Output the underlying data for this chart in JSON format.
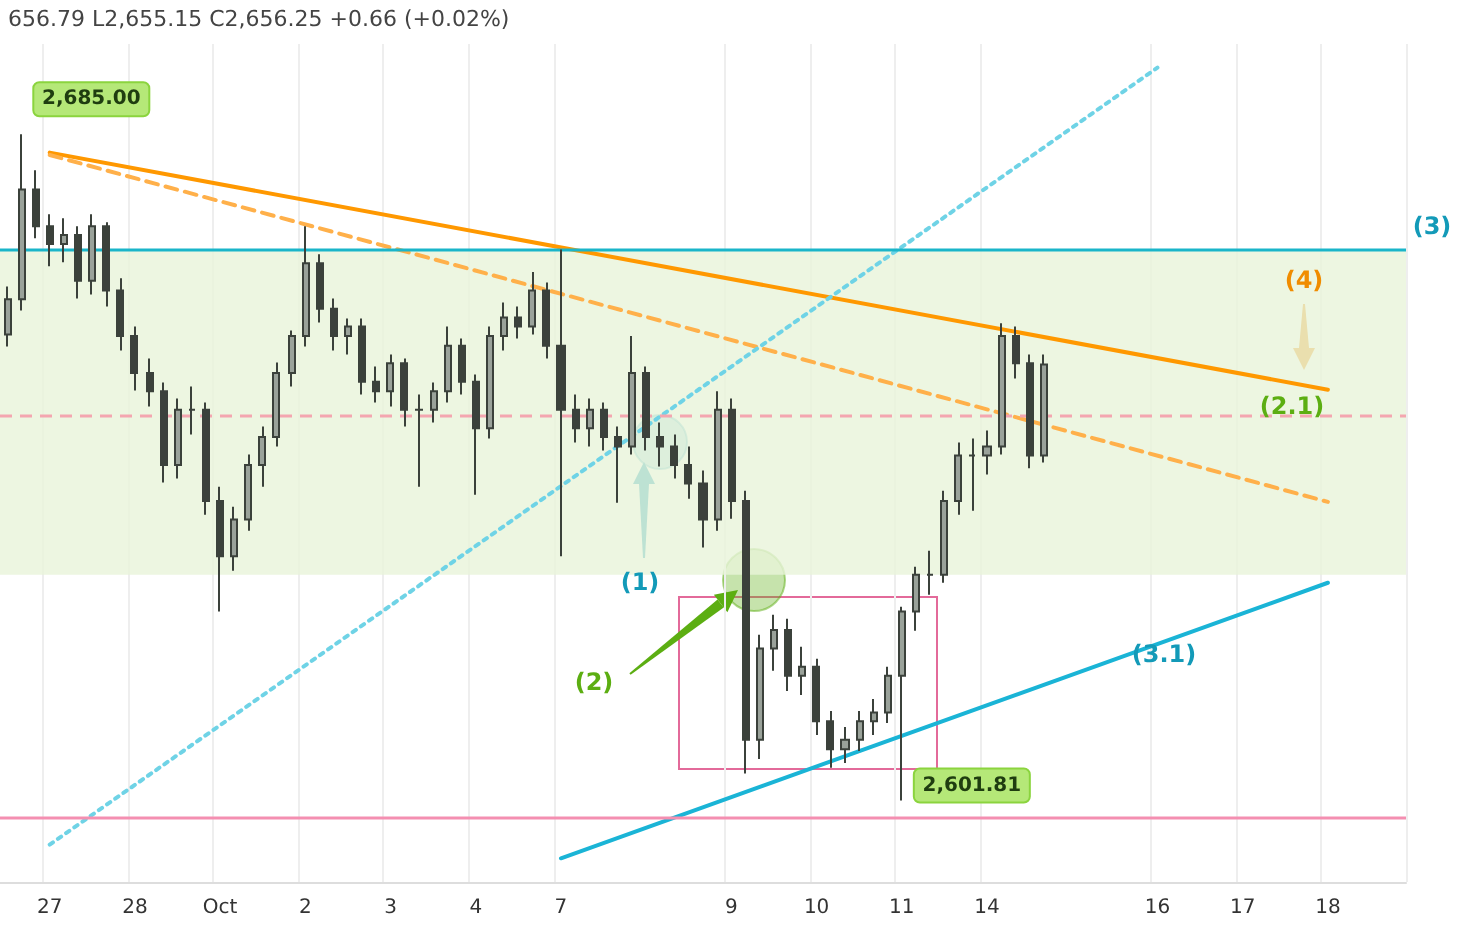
{
  "chart_data": {
    "type": "candlestick",
    "color": "#3b413b",
    "categories": [
      null,
      null,
      null,
      "27",
      null,
      null,
      null,
      null,
      null,
      "28",
      null,
      null,
      null,
      null,
      null,
      "Oct",
      null,
      null,
      null,
      null,
      null,
      "2",
      null,
      null,
      null,
      null,
      null,
      "3",
      null,
      null,
      null,
      null,
      null,
      "4",
      null,
      null,
      null,
      null,
      null,
      "7",
      null,
      null,
      null,
      null,
      null,
      null,
      null,
      null,
      null,
      null,
      null,
      "9",
      null,
      null,
      null,
      null,
      null,
      "10",
      null,
      null,
      null,
      null,
      null,
      "11",
      null,
      null,
      null,
      null,
      null,
      "14",
      null,
      null,
      null,
      null,
      null,
      null,
      null,
      null,
      null,
      null,
      null,
      "16",
      null,
      null,
      null,
      null,
      null,
      "17",
      null,
      null,
      null,
      null,
      null,
      "18",
      null,
      null,
      null,
      null,
      null
    ],
    "ohlc": [
      [
        2660.0,
        2666.0,
        2658.5,
        2664.4
      ],
      [
        2664.4,
        2685.0,
        2663.0,
        2678.1
      ],
      [
        2678.1,
        2680.5,
        2672.0,
        2673.5
      ],
      [
        2673.5,
        2675.0,
        2668.5,
        2671.3
      ],
      [
        2671.3,
        2674.5,
        2669.0,
        2672.4
      ],
      [
        2672.4,
        2673.5,
        2664.5,
        2666.7
      ],
      [
        2666.7,
        2675.0,
        2665.0,
        2673.5
      ],
      [
        2673.5,
        2674.0,
        2663.5,
        2665.5
      ],
      [
        2665.5,
        2667.0,
        2658.0,
        2659.8
      ],
      [
        2659.8,
        2661.0,
        2653.0,
        2655.2
      ],
      [
        2655.2,
        2657.0,
        2651.0,
        2652.9
      ],
      [
        2652.9,
        2654.0,
        2641.5,
        2643.7
      ],
      [
        2643.7,
        2652.0,
        2642.0,
        2650.6
      ],
      [
        2650.6,
        2653.5,
        2647.5,
        2650.6
      ],
      [
        2650.6,
        2651.5,
        2637.5,
        2639.2
      ],
      [
        2639.2,
        2641.0,
        2625.4,
        2632.3
      ],
      [
        2632.3,
        2638.5,
        2630.5,
        2636.9
      ],
      [
        2636.9,
        2645.0,
        2635.5,
        2643.7
      ],
      [
        2643.7,
        2648.5,
        2641.0,
        2647.2
      ],
      [
        2647.2,
        2656.5,
        2646.0,
        2655.2
      ],
      [
        2655.2,
        2660.5,
        2653.5,
        2659.8
      ],
      [
        2659.8,
        2673.5,
        2658.5,
        2668.9
      ],
      [
        2668.9,
        2670.0,
        2661.5,
        2663.2
      ],
      [
        2663.2,
        2664.5,
        2658.0,
        2659.8
      ],
      [
        2659.8,
        2662.0,
        2657.5,
        2661.0
      ],
      [
        2661.0,
        2662.0,
        2652.5,
        2654.1
      ],
      [
        2654.1,
        2656.0,
        2651.5,
        2652.9
      ],
      [
        2652.9,
        2657.5,
        2651.0,
        2656.4
      ],
      [
        2656.4,
        2657.0,
        2648.5,
        2650.6
      ],
      [
        2650.6,
        2652.5,
        2641.0,
        2650.6
      ],
      [
        2650.6,
        2654.0,
        2649.0,
        2652.9
      ],
      [
        2652.9,
        2661.0,
        2651.5,
        2658.6
      ],
      [
        2658.6,
        2659.5,
        2652.5,
        2654.1
      ],
      [
        2654.1,
        2655.0,
        2640.0,
        2648.3
      ],
      [
        2648.3,
        2661.0,
        2647.0,
        2659.8
      ],
      [
        2659.8,
        2664.0,
        2658.0,
        2662.1
      ],
      [
        2662.1,
        2663.5,
        2659.5,
        2661.0
      ],
      [
        2661.0,
        2667.8,
        2660.0,
        2665.5
      ],
      [
        2665.5,
        2666.5,
        2657.0,
        2658.6
      ],
      [
        2658.6,
        2670.6,
        2632.3,
        2650.6
      ],
      [
        2650.6,
        2652.5,
        2646.5,
        2648.3
      ],
      [
        2648.3,
        2652.0,
        2646.0,
        2650.6
      ],
      [
        2650.6,
        2651.5,
        2645.5,
        2647.2
      ],
      [
        2647.2,
        2648.5,
        2639.0,
        2646.0
      ],
      [
        2646.0,
        2659.8,
        2645.0,
        2655.2
      ],
      [
        2655.2,
        2656.0,
        2645.5,
        2647.2
      ],
      [
        2647.2,
        2649.0,
        2643.5,
        2646.0
      ],
      [
        2646.0,
        2647.5,
        2642.0,
        2643.7
      ],
      [
        2643.7,
        2646.0,
        2639.5,
        2641.4
      ],
      [
        2641.4,
        2643.0,
        2633.4,
        2636.9
      ],
      [
        2636.9,
        2652.9,
        2635.5,
        2650.6
      ],
      [
        2650.6,
        2652.0,
        2637.0,
        2639.2
      ],
      [
        2639.2,
        2640.5,
        2605.2,
        2609.4
      ],
      [
        2609.4,
        2622.5,
        2607.0,
        2620.8
      ],
      [
        2620.8,
        2625.0,
        2618.0,
        2623.1
      ],
      [
        2623.1,
        2624.5,
        2615.5,
        2617.4
      ],
      [
        2617.4,
        2621.0,
        2615.0,
        2618.5
      ],
      [
        2618.5,
        2619.5,
        2610.0,
        2611.7
      ],
      [
        2611.7,
        2613.0,
        2605.9,
        2608.2
      ],
      [
        2608.2,
        2611.0,
        2606.5,
        2609.4
      ],
      [
        2609.4,
        2613.0,
        2608.0,
        2611.7
      ],
      [
        2611.7,
        2614.5,
        2610.0,
        2612.8
      ],
      [
        2612.8,
        2618.5,
        2611.5,
        2617.4
      ],
      [
        2617.4,
        2626.0,
        2601.81,
        2625.4
      ],
      [
        2625.4,
        2631.0,
        2623.0,
        2630.0
      ],
      [
        2630.0,
        2633.0,
        2627.5,
        2630.0
      ],
      [
        2630.0,
        2640.5,
        2629.0,
        2639.2
      ],
      [
        2639.2,
        2646.5,
        2637.5,
        2644.9
      ],
      [
        2644.9,
        2647.0,
        2638.0,
        2644.9
      ],
      [
        2644.9,
        2648.0,
        2642.5,
        2646.0
      ],
      [
        2646.0,
        2661.4,
        2645.0,
        2659.8
      ],
      [
        2659.8,
        2661.0,
        2654.5,
        2656.4
      ],
      [
        2656.4,
        2657.5,
        2643.3,
        2644.9
      ],
      [
        2644.9,
        2657.5,
        2644.0,
        2656.25
      ],
      null,
      null,
      null,
      null,
      null,
      null,
      null,
      null,
      null,
      null,
      null,
      null,
      null,
      null,
      null,
      null,
      null,
      null,
      null,
      null,
      null,
      null,
      null,
      null,
      null
    ],
    "series": [
      {
        "type": "line",
        "color": "#ff9800",
        "x": [
          "27",
          "18"
        ],
        "values": [
          2682.7,
          2653.1
        ],
        "line_style": "solid"
      },
      {
        "type": "line",
        "color": "#ffb04a",
        "x": [
          "27",
          "18"
        ],
        "values": [
          2682.4,
          2639.1
        ],
        "line_style": "dashed"
      },
      {
        "type": "line",
        "color": "#1ab4d6",
        "x": [
          "7",
          "18"
        ],
        "values": [
          2594.6,
          2629.0
        ],
        "line_style": "solid"
      },
      {
        "type": "line",
        "color": "#6fd3e6",
        "x": [
          "27",
          "16"
        ],
        "values": [
          2596.3,
          2693.3
        ],
        "line_style": "dotted"
      }
    ],
    "ref_lines": [
      {
        "axis": "y",
        "value": 2670.6,
        "color": "#1ab5c9"
      },
      {
        "axis": "y",
        "value": 2649.9,
        "color": "#f4a6b0",
        "line_style": "dashed"
      },
      {
        "axis": "y",
        "value": 2599.7,
        "color": "#f48fb1"
      }
    ],
    "bands": [
      {
        "axis": "y",
        "from": 2630.0,
        "to": 2670.6,
        "color": "#e8f4da"
      }
    ],
    "grid": "x",
    "annotations": [
      "656.79 L2,655.15 C2,656.25 +0.66 (+0.02%)",
      "2,685.00",
      "2,601.81",
      "(1)",
      "(2)",
      "(2.1)",
      "(3.1)",
      "(4)",
      "(3)"
    ]
  }
}
